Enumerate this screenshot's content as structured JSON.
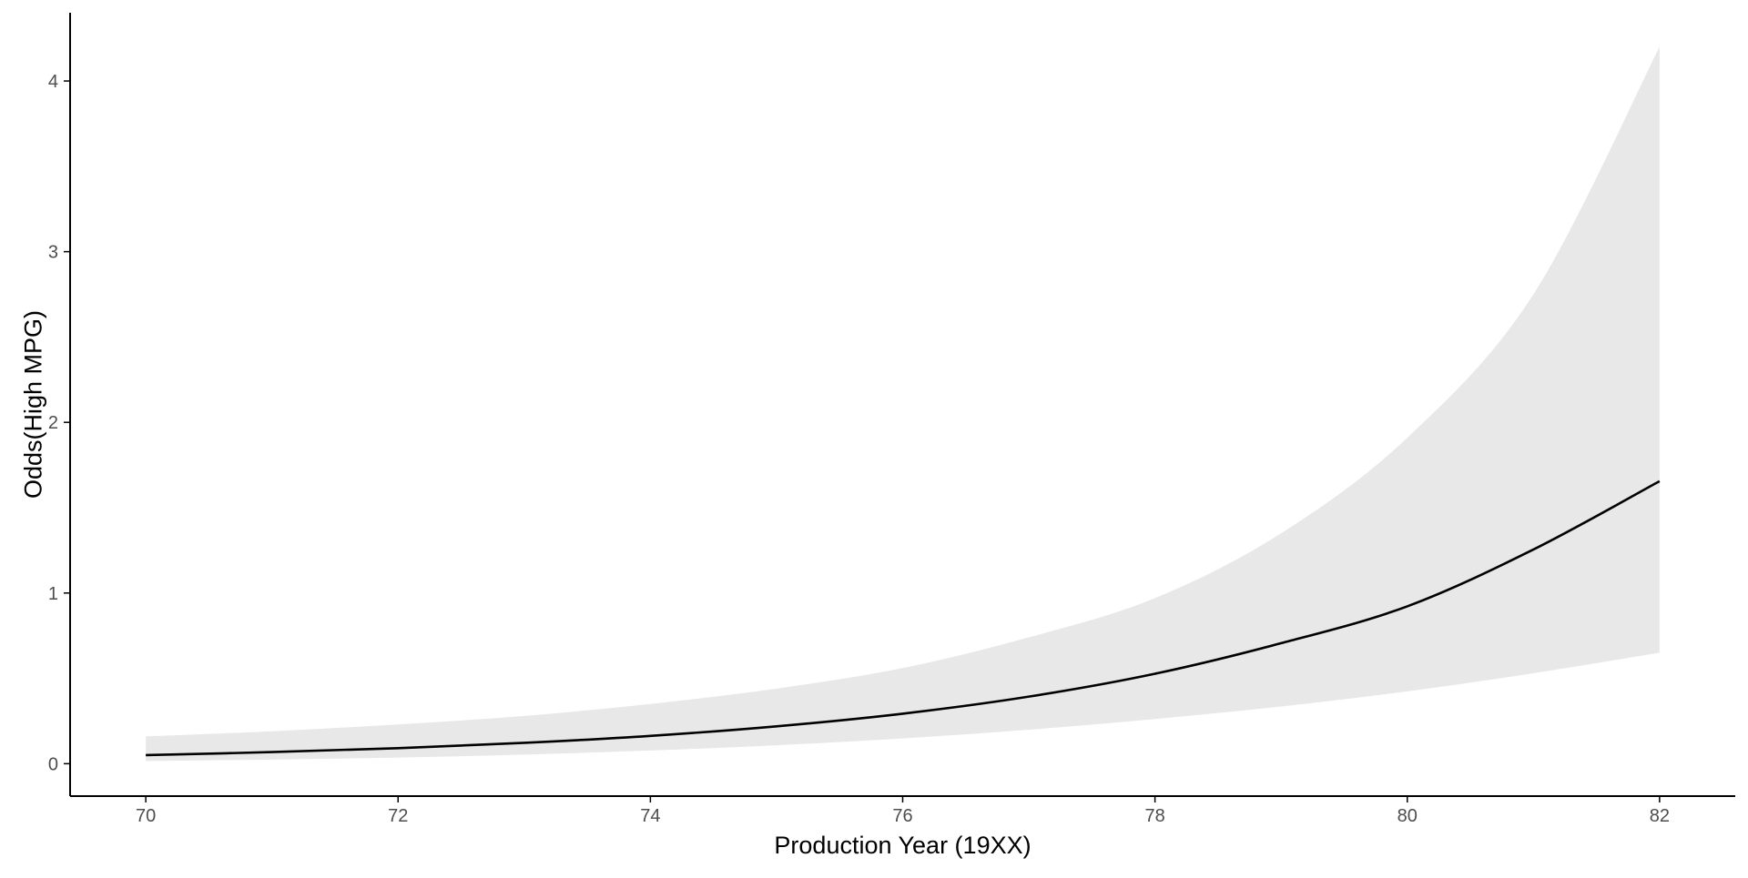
{
  "chart_data": {
    "type": "line",
    "title": "",
    "xlabel": "Production Year (19XX)",
    "ylabel": "Odds(High MPG)",
    "xlim": [
      69.4,
      82.6
    ],
    "ylim": [
      -0.19,
      4.4
    ],
    "x_ticks": [
      70,
      72,
      74,
      76,
      78,
      80,
      82
    ],
    "y_ticks": [
      0,
      1,
      2,
      3,
      4
    ],
    "grid": false,
    "legend": "none",
    "series": [
      {
        "x": [
          70,
          71,
          72,
          73,
          74,
          75,
          76,
          77,
          78,
          79,
          80,
          81,
          82
        ],
        "values": [
          0.05,
          0.068,
          0.091,
          0.122,
          0.163,
          0.219,
          0.293,
          0.393,
          0.527,
          0.706,
          0.922,
          1.255,
          1.655
        ],
        "lower": [
          0.015,
          0.024,
          0.036,
          0.053,
          0.077,
          0.108,
          0.148,
          0.199,
          0.262,
          0.335,
          0.424,
          0.53,
          0.65
        ],
        "upper": [
          0.16,
          0.19,
          0.23,
          0.28,
          0.35,
          0.44,
          0.56,
          0.74,
          0.97,
          1.35,
          1.91,
          2.75,
          4.2
        ]
      }
    ],
    "colors": {
      "line": "#000000",
      "ribbon": "#e8e8e8",
      "axis": "#000000",
      "tick_label": "#4d4d4d"
    }
  }
}
